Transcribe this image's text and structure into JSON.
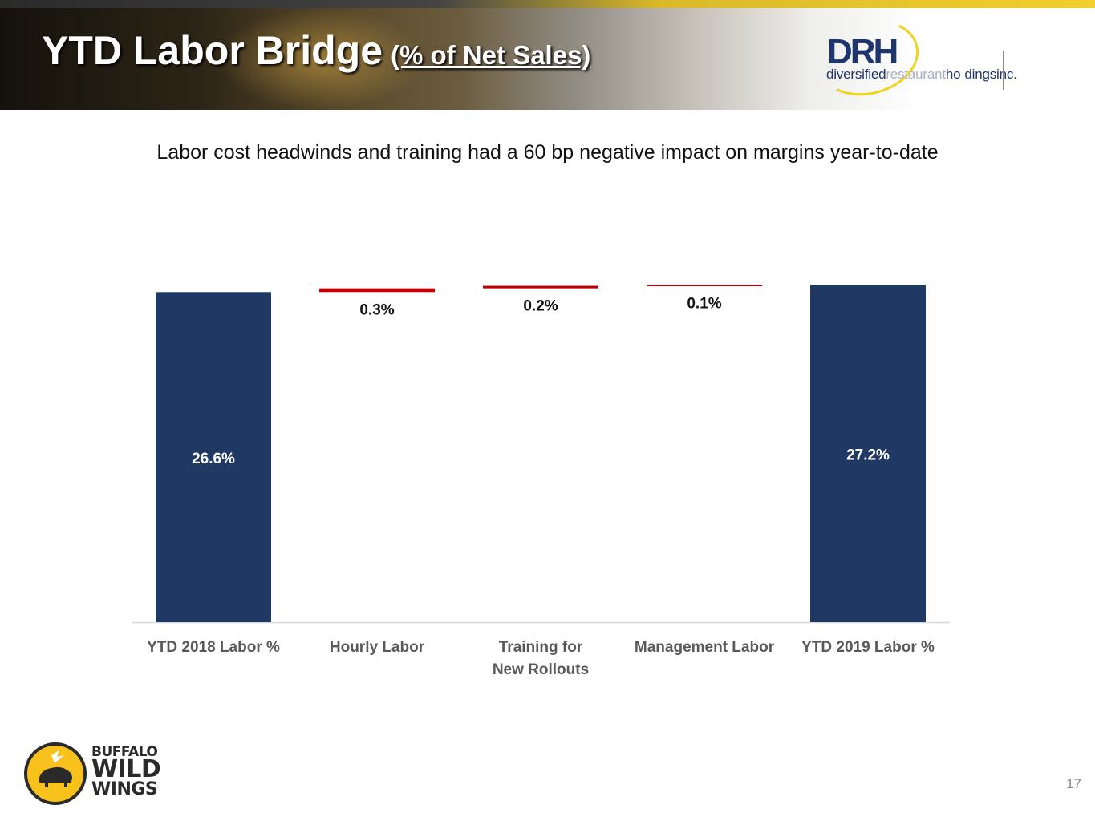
{
  "header": {
    "title": "YTD Labor Bridge",
    "title_suffix": "(% of Net Sales)"
  },
  "drh_logo": {
    "mark": "DRH",
    "tag_part1": "diversified",
    "tag_part2": "restaurant",
    "tag_part3": "ho",
    "tag_part4": "dingsinc."
  },
  "subtitle": "Labor cost headwinds and training had a 60 bp negative impact on margins year-to-date",
  "chart_data": {
    "type": "bar",
    "subtype": "waterfall",
    "categories": [
      "YTD 2018 Labor %",
      "Hourly Labor",
      "Training for New Rollouts",
      "Management Labor",
      "YTD 2019 Labor %"
    ],
    "category_lines": [
      [
        "YTD 2018 Labor %"
      ],
      [
        "Hourly Labor"
      ],
      [
        "Training for",
        "New Rollouts"
      ],
      [
        "Management Labor"
      ],
      [
        "YTD 2019 Labor %"
      ]
    ],
    "values": [
      26.6,
      0.3,
      0.2,
      0.1,
      27.2
    ],
    "kinds": [
      "total",
      "increase",
      "increase",
      "increase",
      "total"
    ],
    "labels": [
      "26.6%",
      "0.3%",
      "0.2%",
      "0.1%",
      "27.2%"
    ],
    "ylim": [
      0,
      27.2
    ],
    "colors": {
      "total": "#203864",
      "increase": "#c00000",
      "axis": "#d9d9d9",
      "label_dark": "#111111",
      "label_light": "#ffffff",
      "category_text": "#595959"
    },
    "title": "",
    "xlabel": "",
    "ylabel": ""
  },
  "footer": {
    "brand_line1": "BUFFALO",
    "brand_line2": "WILD",
    "brand_line3": "WINGS",
    "page_number": "17"
  }
}
